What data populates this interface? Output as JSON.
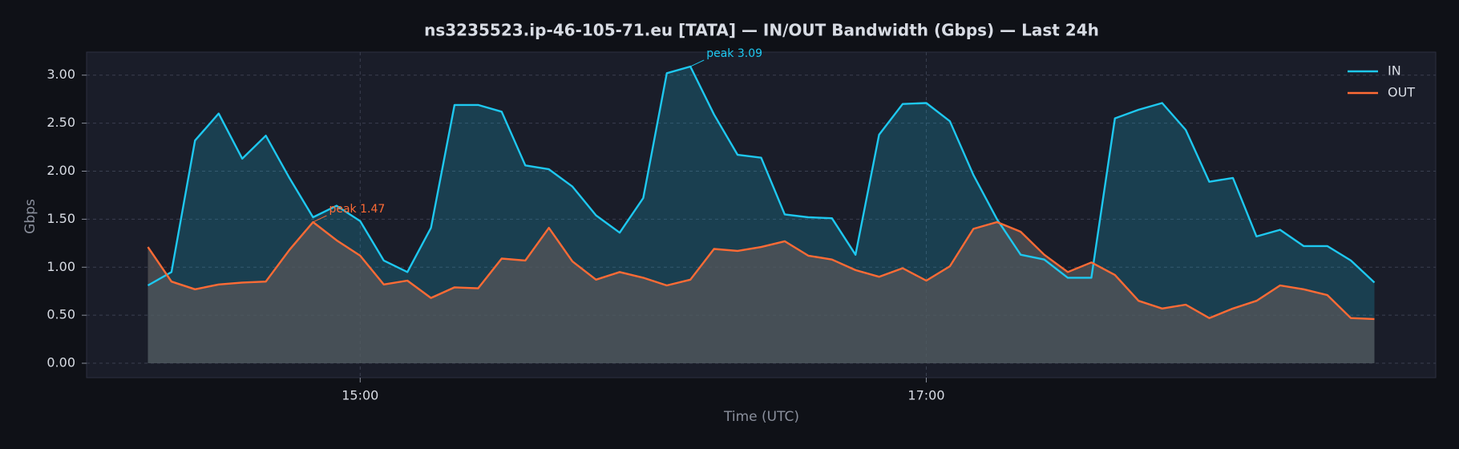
{
  "chart_data": {
    "type": "line",
    "title": "ns3235523.ip-46-105-71.eu [TATA] — IN/OUT Bandwidth (Gbps) — Last 24h",
    "xlabel": "Time (UTC)",
    "ylabel": "Gbps",
    "x": [
      "14:15",
      "14:20",
      "14:25",
      "14:30",
      "14:35",
      "14:40",
      "14:45",
      "14:50",
      "14:55",
      "15:00",
      "15:05",
      "15:10",
      "15:15",
      "15:20",
      "15:25",
      "15:30",
      "15:35",
      "15:40",
      "15:45",
      "15:50",
      "15:55",
      "16:00",
      "16:05",
      "16:10",
      "16:15",
      "16:20",
      "16:25",
      "16:30",
      "16:35",
      "16:40",
      "16:45",
      "16:50",
      "16:55",
      "17:00",
      "17:05",
      "17:10",
      "17:15",
      "17:20",
      "17:25",
      "17:30",
      "17:35",
      "17:40",
      "17:45",
      "17:50",
      "17:55",
      "18:00",
      "18:05",
      "18:10",
      "18:15",
      "18:20",
      "18:25",
      "18:30",
      "18:35"
    ],
    "series": [
      {
        "name": "IN",
        "color": "#1ec8f0",
        "values": [
          0.81,
          0.95,
          2.32,
          2.6,
          2.13,
          2.37,
          1.93,
          1.52,
          1.64,
          1.48,
          1.07,
          0.95,
          1.41,
          2.69,
          2.69,
          2.62,
          2.06,
          2.02,
          1.84,
          1.54,
          1.36,
          1.72,
          3.02,
          3.09,
          2.59,
          2.17,
          2.14,
          1.55,
          1.52,
          1.51,
          1.13,
          2.38,
          2.7,
          2.71,
          2.52,
          1.96,
          1.5,
          1.13,
          1.08,
          0.89,
          0.89,
          2.55,
          2.64,
          2.71,
          2.43,
          1.89,
          1.93,
          1.32,
          1.39,
          1.22,
          1.22,
          1.07,
          0.84
        ]
      },
      {
        "name": "OUT",
        "color": "#ff6b35",
        "values": [
          1.21,
          0.85,
          0.77,
          0.82,
          0.84,
          0.85,
          1.18,
          1.47,
          1.28,
          1.12,
          0.82,
          0.86,
          0.68,
          0.79,
          0.78,
          1.09,
          1.07,
          1.41,
          1.06,
          0.87,
          0.95,
          0.89,
          0.81,
          0.87,
          1.19,
          1.17,
          1.21,
          1.27,
          1.12,
          1.08,
          0.97,
          0.9,
          0.99,
          0.86,
          1.01,
          1.4,
          1.47,
          1.37,
          1.13,
          0.95,
          1.05,
          0.92,
          0.65,
          0.57,
          0.61,
          0.47,
          0.57,
          0.65,
          0.81,
          0.77,
          0.71,
          0.47,
          0.46
        ]
      }
    ],
    "annotations": [
      {
        "text": "peak 3.09",
        "x": "16:10",
        "y": 3.09,
        "color": "#1ec8f0"
      },
      {
        "text": "peak 1.47",
        "x": "14:50",
        "y": 1.47,
        "color": "#ff6b35"
      }
    ],
    "xlim": [
      "14:02",
      "18:48"
    ],
    "xticks": [
      "15:00",
      "17:00"
    ],
    "ylim": [
      -0.15,
      3.24
    ],
    "yticks": [
      {
        "value": 0,
        "label": "0.00"
      },
      {
        "value": 0.5,
        "label": "0.50"
      },
      {
        "value": 1,
        "label": "1.00"
      },
      {
        "value": 1.5,
        "label": "1.50"
      },
      {
        "value": 2,
        "label": "2.00"
      },
      {
        "value": 2.5,
        "label": "2.50"
      },
      {
        "value": 3,
        "label": "3.00"
      }
    ],
    "grid": true,
    "legend": "upper right"
  }
}
